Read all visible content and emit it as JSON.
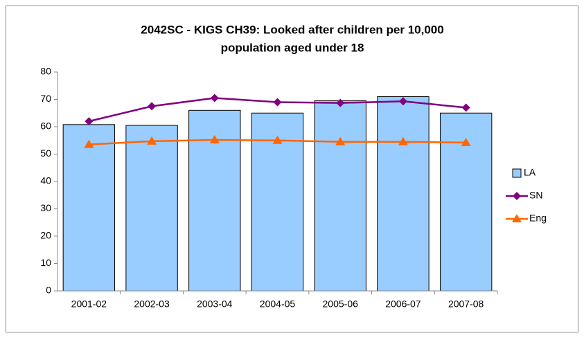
{
  "chart_data": {
    "type": "bar",
    "title": [
      "2042SC - KIGS CH39: Looked after children per 10,000",
      "population aged under 18"
    ],
    "categories": [
      "2001-02",
      "2002-03",
      "2003-04",
      "2004-05",
      "2005-06",
      "2006-07",
      "2007-08"
    ],
    "series": [
      {
        "name": "LA",
        "type": "bar",
        "color": "#99ccff",
        "values": [
          60.8,
          60.5,
          66,
          65,
          69.5,
          71,
          65
        ]
      },
      {
        "name": "SN",
        "type": "line",
        "marker": "diamond",
        "color": "#800080",
        "values": [
          62,
          67.5,
          70.5,
          69,
          68.7,
          69.3,
          67
        ]
      },
      {
        "name": "Eng",
        "type": "line",
        "marker": "triangle",
        "color": "#ff6600",
        "values": [
          53.5,
          54.7,
          55.2,
          55,
          54.5,
          54.5,
          54.2
        ]
      }
    ],
    "ylim": [
      0,
      80
    ],
    "yticks": [
      0,
      10,
      20,
      30,
      40,
      50,
      60,
      70,
      80
    ],
    "grid": false,
    "legend": "right"
  }
}
